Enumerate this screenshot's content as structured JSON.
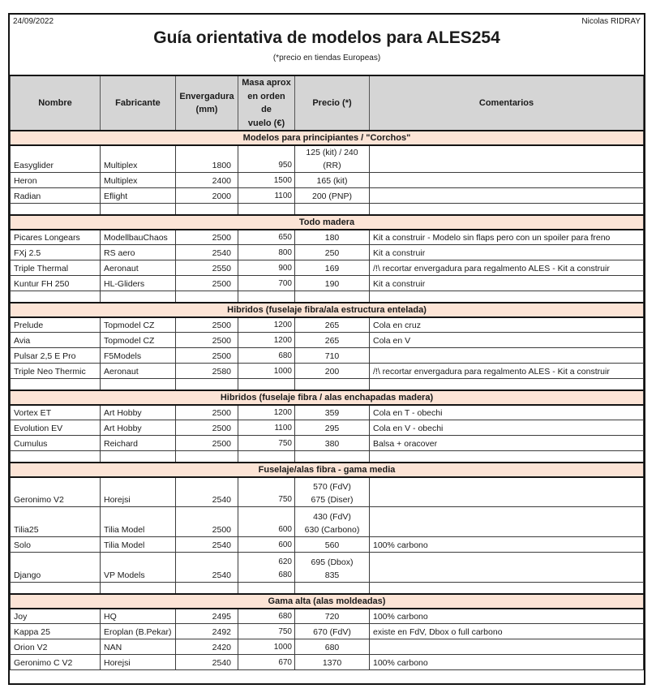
{
  "page": {
    "date": "24/09/2022",
    "author": "Nicolas RIDRAY",
    "title": "Guía orientativa de modelos para ALES254",
    "subtitle": "(*precio en tiendas Europeas)"
  },
  "colors": {
    "section_band": "#fce4d6",
    "header_row": "#d5d5d5",
    "border": "#141414"
  },
  "table": {
    "columns": {
      "nombre": "Nombre",
      "fabricante": "Fabricante",
      "envergadura": "Envergadura\n(mm)",
      "masa": "Masa aprox\nen orden de\nvuelo (€)",
      "precio": "Precio (*)",
      "comentarios": "Comentarios"
    },
    "sections": [
      {
        "header": "Modelos para principiantes / \"Corchos\"",
        "rows": [
          {
            "nombre": "Easyglider",
            "fabricante": "Multiplex",
            "envergadura": "1800",
            "masa": "950",
            "precio": "125 (kit) / 240 (RR)",
            "comentarios": ""
          },
          {
            "nombre": "Heron",
            "fabricante": "Multiplex",
            "envergadura": "2400",
            "masa": "1500",
            "precio": "165 (kit)",
            "comentarios": ""
          },
          {
            "nombre": "Radian",
            "fabricante": "Eflight",
            "envergadura": "2000",
            "masa": "1100",
            "precio": "200 (PNP)",
            "comentarios": ""
          }
        ]
      },
      {
        "header": "Todo madera",
        "rows": [
          {
            "nombre": "Picares Longears",
            "fabricante": "ModellbauChaos",
            "envergadura": "2500",
            "masa": "650",
            "precio": "180",
            "comentarios": "Kit a construir - Modelo sin flaps pero con un spoiler para freno"
          },
          {
            "nombre": "FXj 2.5",
            "fabricante": "RS aero",
            "envergadura": "2540",
            "masa": "800",
            "precio": "250",
            "comentarios": "Kit a construir"
          },
          {
            "nombre": "Triple Thermal",
            "fabricante": "Aeronaut",
            "envergadura": "2550",
            "masa": "900",
            "precio": "169",
            "comentarios": "/!\\ recortar envergadura para regalmento ALES - Kit a construir"
          },
          {
            "nombre": "Kuntur FH 250",
            "fabricante": "HL-Gliders",
            "envergadura": "2500",
            "masa": "700",
            "precio": "190",
            "comentarios": "Kit a construir"
          }
        ]
      },
      {
        "header": "Hibridos (fuselaje fibra/ala estructura entelada)",
        "rows": [
          {
            "nombre": "Prelude",
            "fabricante": "Topmodel CZ",
            "envergadura": "2500",
            "masa": "1200",
            "precio": "265",
            "comentarios": "Cola en cruz"
          },
          {
            "nombre": "Avia",
            "fabricante": "Topmodel CZ",
            "envergadura": "2500",
            "masa": "1200",
            "precio": "265",
            "comentarios": "Cola en V"
          },
          {
            "nombre": "Pulsar 2,5 E Pro",
            "fabricante": "F5Models",
            "envergadura": "2500",
            "masa": "680",
            "precio": "710",
            "comentarios": ""
          },
          {
            "nombre": "Triple Neo Thermic",
            "fabricante": "Aeronaut",
            "envergadura": "2580",
            "masa": "1000",
            "precio": "200",
            "comentarios": "/!\\ recortar envergadura para regalmento ALES - Kit a construir"
          }
        ]
      },
      {
        "header": "Hibridos (fuselaje fibra / alas enchapadas madera)",
        "rows": [
          {
            "nombre": "Vortex ET",
            "fabricante": "Art Hobby",
            "envergadura": "2500",
            "masa": "1200",
            "precio": "359",
            "comentarios": "Cola en T - obechi"
          },
          {
            "nombre": "Evolution EV",
            "fabricante": "Art Hobby",
            "envergadura": "2500",
            "masa": "1100",
            "precio": "295",
            "comentarios": "Cola en V - obechi"
          },
          {
            "nombre": "Cumulus",
            "fabricante": "Reichard",
            "envergadura": "2500",
            "masa": "750",
            "precio": "380",
            "comentarios": "Balsa + oracover"
          }
        ]
      },
      {
        "header": "Fuselaje/alas fibra - gama media",
        "rows": [
          {
            "nombre": "Geronimo V2",
            "fabricante": "Horejsi",
            "envergadura": "2540",
            "masa": "750",
            "precio": "570 (FdV)\n675 (Diser)",
            "comentarios": ""
          },
          {
            "nombre": "Tilia25",
            "fabricante": "Tilia Model",
            "envergadura": "2500",
            "masa": "600",
            "precio": "430 (FdV)\n630 (Carbono)",
            "comentarios": ""
          },
          {
            "nombre": "Solo",
            "fabricante": "Tilia Model",
            "envergadura": "2540",
            "masa": "600",
            "precio": "560",
            "comentarios": "100% carbono"
          },
          {
            "nombre": "Django",
            "fabricante": "VP Models",
            "envergadura": "2540",
            "masa": "620\n680",
            "precio": "695 (Dbox)\n835",
            "comentarios": ""
          }
        ]
      },
      {
        "header": "Gama alta (alas moldeadas)",
        "rows": [
          {
            "nombre": "Joy",
            "fabricante": "HQ",
            "envergadura": "2495",
            "masa": "680",
            "precio": "720",
            "comentarios": "100% carbono"
          },
          {
            "nombre": "Kappa 25",
            "fabricante": "Eroplan (B.Pekar)",
            "envergadura": "2492",
            "masa": "750",
            "precio": "670 (FdV)",
            "comentarios": "existe en FdV, Dbox o full carbono"
          },
          {
            "nombre": "Orion V2",
            "fabricante": "NAN",
            "envergadura": "2420",
            "masa": "1000",
            "precio": "680",
            "comentarios": ""
          },
          {
            "nombre": "Geronimo C V2",
            "fabricante": "Horejsi",
            "envergadura": "2540",
            "masa": "670",
            "precio": "1370",
            "comentarios": "100% carbono"
          }
        ]
      }
    ]
  }
}
